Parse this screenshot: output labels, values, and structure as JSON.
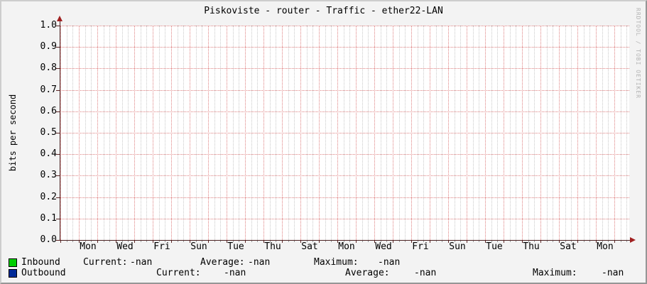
{
  "title": "Piskoviste - router - Traffic - ether22-LAN",
  "watermark": "RRDTOOL / TOBI OETIKER",
  "chart_data": {
    "type": "line",
    "title": "Piskoviste - router - Traffic - ether22-LAN",
    "xlabel": "",
    "ylabel": "bits per second",
    "ylim": [
      0.0,
      1.0
    ],
    "yticks": [
      "1.0",
      "0.9",
      "0.8",
      "0.7",
      "0.6",
      "0.5",
      "0.4",
      "0.3",
      "0.2",
      "0.1",
      "0.0"
    ],
    "xticklabels": [
      "Mon",
      "Wed",
      "Fri",
      "Sun",
      "Tue",
      "Thu",
      "Sat",
      "Mon",
      "Wed",
      "Fri",
      "Sun",
      "Tue",
      "Thu",
      "Sat",
      "Mon"
    ],
    "grid": "on",
    "legend_position": "bottom",
    "series": [
      {
        "name": "Inbound",
        "color": "#00CF00",
        "values": [],
        "note": "no data plotted - all values are -nan"
      },
      {
        "name": "Outbound",
        "color": "#002A97",
        "values": [],
        "note": "no data plotted - all values are -nan"
      }
    ]
  },
  "legend": {
    "rows": [
      {
        "name": "Inbound",
        "swatch_color": "#00CF00",
        "current_label": "Current:",
        "current": "-nan",
        "average_label": "Average:",
        "average": "-nan",
        "maximum_label": "Maximum:",
        "maximum": "-nan"
      },
      {
        "name": "Outbound",
        "swatch_color": "#002A97",
        "current_label": "Current:",
        "current": "-nan",
        "average_label": "Average:",
        "average": "-nan",
        "maximum_label": "Maximum:",
        "maximum": "-nan"
      }
    ]
  }
}
